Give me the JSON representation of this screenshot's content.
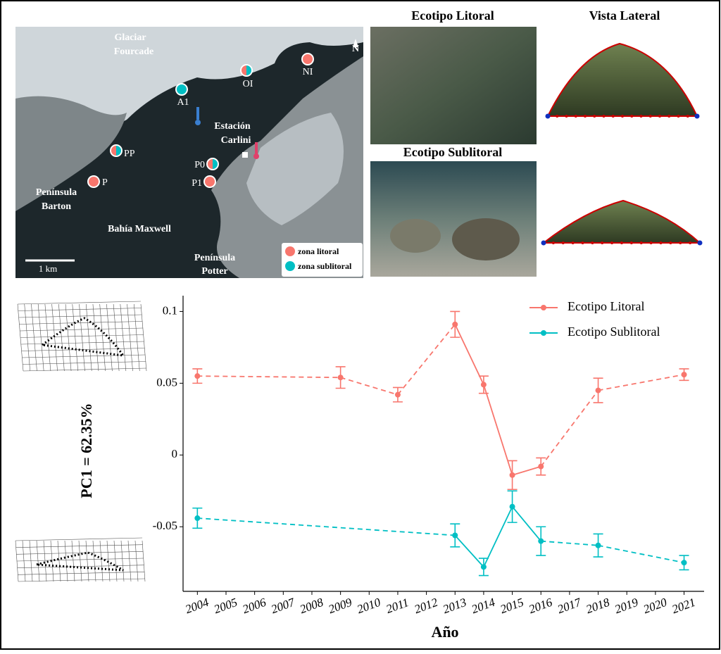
{
  "map": {
    "labels": [
      "Glaciar",
      "Fourcade",
      "Estación",
      "Carlini",
      "Península",
      "Barton",
      "Bahía Maxwell",
      "Península",
      "Potter",
      "1 km",
      "N"
    ],
    "sites": [
      {
        "label": "NI",
        "colors": [
          "#F8766D"
        ]
      },
      {
        "label": "OI",
        "colors": [
          "#F8766D",
          "#00BFC4"
        ]
      },
      {
        "label": "A1",
        "colors": [
          "#00BFC4"
        ]
      },
      {
        "label": "PP",
        "colors": [
          "#F8766D",
          "#00BFC4"
        ]
      },
      {
        "label": "P0",
        "colors": [
          "#F8766D",
          "#00BFC4"
        ]
      },
      {
        "label": "P1",
        "colors": [
          "#F8766D"
        ]
      },
      {
        "label": "P",
        "colors": [
          "#F8766D"
        ]
      }
    ],
    "legend": [
      {
        "label": "zona litoral",
        "color": "#F8766D"
      },
      {
        "label": "zona sublitoral",
        "color": "#00BFC4"
      }
    ]
  },
  "panels": {
    "litoral_title": "Ecotipo Litoral",
    "sublitoral_title": "Ecotipo Sublitoral",
    "lateral_title": "Vista Lateral"
  },
  "chart_data": {
    "type": "line",
    "y_label": "PC1 = 62.35%",
    "x_label": "Año",
    "xlim": [
      2003.5,
      2021.7
    ],
    "xticks": [
      2004,
      2005,
      2006,
      2007,
      2008,
      2009,
      2010,
      2011,
      2012,
      2013,
      2014,
      2015,
      2016,
      2017,
      2018,
      2019,
      2020,
      2021
    ],
    "ylim": [
      -0.095,
      0.111
    ],
    "yticks": [
      0.1,
      0.05,
      0,
      -0.05
    ],
    "legend": "top-right",
    "series": [
      {
        "name": "Ecotipo Litoral",
        "color": "#F8766D",
        "x": [
          2004,
          2009,
          2011,
          2013,
          2014,
          2015,
          2016,
          2018,
          2021
        ],
        "values": [
          0.055,
          0.054,
          0.042,
          0.091,
          0.049,
          -0.014,
          -0.008,
          0.045,
          0.056
        ],
        "errors": [
          0.005,
          0.0075,
          0.005,
          0.009,
          0.006,
          0.01,
          0.006,
          0.0085,
          0.004
        ],
        "segment_styles": [
          "dashed",
          "dashed",
          "dashed",
          "solid",
          "solid",
          "solid",
          "dashed",
          "dashed"
        ]
      },
      {
        "name": "Ecotipo Sublitoral",
        "color": "#00BFC4",
        "x": [
          2004,
          2013,
          2014,
          2015,
          2016,
          2018,
          2021
        ],
        "values": [
          -0.044,
          -0.056,
          -0.078,
          -0.036,
          -0.06,
          -0.063,
          -0.075
        ],
        "errors": [
          0.007,
          0.008,
          0.006,
          0.011,
          0.01,
          0.008,
          0.005
        ],
        "segment_styles": [
          "dashed",
          "solid",
          "solid",
          "solid",
          "dashed",
          "dashed"
        ]
      }
    ]
  }
}
